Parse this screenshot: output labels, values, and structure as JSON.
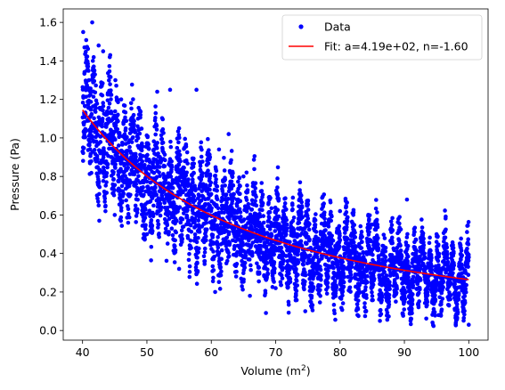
{
  "chart_data": {
    "type": "scatter",
    "xlabel": "Volume (m²)",
    "xlabel_main": "Volume (m",
    "xlabel_sup": "2",
    "xlabel_close": ")",
    "ylabel": "Pressure (Pa)",
    "xlim": [
      37,
      103
    ],
    "ylim": [
      -0.05,
      1.67
    ],
    "xticks": [
      40,
      50,
      60,
      70,
      80,
      90,
      100
    ],
    "yticks": [
      0.0,
      0.2,
      0.4,
      0.6,
      0.8,
      1.0,
      1.2,
      1.4,
      1.6
    ],
    "xtick_labels": [
      "40",
      "50",
      "60",
      "70",
      "80",
      "90",
      "100"
    ],
    "ytick_labels": [
      "0.0",
      "0.2",
      "0.4",
      "0.6",
      "0.8",
      "1.0",
      "1.2",
      "1.4",
      "1.6"
    ],
    "grid": false,
    "legend_position": "top-right",
    "series": [
      {
        "name": "Data",
        "kind": "scatter",
        "color": "#0000ff",
        "x_range": [
          40,
          100
        ],
        "note": "dense noisy samples around the fitted curve",
        "points": [
          [
            40.1,
            1.55
          ],
          [
            40.3,
            1.47
          ],
          [
            41.5,
            1.6
          ],
          [
            40.6,
            1.42
          ],
          [
            41.0,
            1.3
          ],
          [
            42.5,
            1.48
          ],
          [
            43.2,
            1.45
          ],
          [
            44.3,
            1.43
          ],
          [
            45.1,
            1.3
          ],
          [
            46.0,
            1.2
          ],
          [
            47.8,
            1.1
          ],
          [
            49.0,
            1.12
          ],
          [
            51.6,
            1.24
          ],
          [
            53.6,
            1.25
          ],
          [
            55.0,
            1.05
          ],
          [
            57.7,
            1.25
          ],
          [
            59.8,
            0.9
          ],
          [
            61.2,
            0.94
          ],
          [
            62.7,
            1.02
          ],
          [
            65.0,
            0.8
          ],
          [
            70.3,
            0.7
          ],
          [
            75.0,
            0.67
          ],
          [
            80.0,
            0.62
          ],
          [
            85.0,
            0.55
          ],
          [
            90.4,
            0.68
          ],
          [
            95.0,
            0.5
          ],
          [
            100.0,
            0.38
          ],
          [
            100.0,
            0.03
          ],
          [
            86.2,
            0.05
          ],
          [
            74.6,
            0.1
          ],
          [
            60.6,
            0.2
          ],
          [
            55.0,
            0.32
          ],
          [
            45.0,
            0.6
          ],
          [
            42.6,
            0.57
          ],
          [
            50.0,
            0.5
          ],
          [
            66.0,
            0.18
          ],
          [
            80.0,
            0.17
          ],
          [
            90.0,
            0.15
          ],
          [
            95.3,
            0.08
          ],
          [
            70.0,
            0.22
          ]
        ]
      },
      {
        "name": "Fit: a=4.19e+02, n=-1.60",
        "kind": "line",
        "color": "#ff0000",
        "a": 419,
        "n": -1.6
      }
    ]
  }
}
